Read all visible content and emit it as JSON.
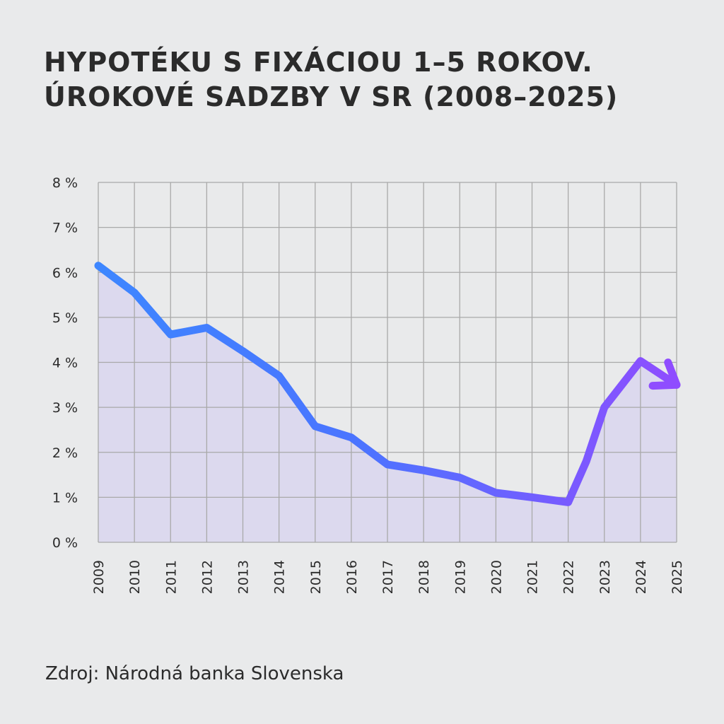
{
  "title_line1": "HYPOTÉKU S FIXÁCIOU 1–5 ROKOV.",
  "title_line2": "ÚROKOVÉ SADZBY V SR (2008–2025)",
  "source": "Zdroj: Národná banka Slovenska",
  "colors": {
    "background": "#e9eaeb",
    "line_start": "#3d86ff",
    "line_end": "#8f4dff",
    "area_fill": "#dcd9ee",
    "grid": "#a9a9a9",
    "text": "#2b2b2b"
  },
  "chart_data": {
    "type": "line",
    "title": "HYPOTÉKU S FIXÁCIOU 1–5 ROKOV. ÚROKOVÉ SADZBY V SR (2008–2025)",
    "xlabel": "",
    "ylabel": "",
    "grid": true,
    "area_fill": true,
    "ylim": [
      0,
      8
    ],
    "xlim": [
      2009,
      2025
    ],
    "x_ticks": [
      "2009",
      "2010",
      "2011",
      "2012",
      "2013",
      "2014",
      "2015",
      "2016",
      "2017",
      "2018",
      "2019",
      "2020",
      "2021",
      "2022",
      "2023",
      "2024",
      "2025"
    ],
    "y_ticks": [
      "0 %",
      "1 %",
      "2 %",
      "3 %",
      "4 %",
      "5 %",
      "6 %",
      "7 %",
      "8 %"
    ],
    "series": [
      {
        "x": [
          2009,
          2010,
          2011,
          2012,
          2013,
          2014,
          2015,
          2016,
          2017,
          2018,
          2019,
          2020,
          2021,
          2022,
          2022.5,
          2023,
          2024,
          2025
        ],
        "y": [
          6.15,
          5.55,
          4.62,
          4.77,
          4.25,
          3.7,
          2.58,
          2.33,
          1.73,
          1.6,
          1.44,
          1.1,
          1.0,
          0.89,
          1.8,
          3.0,
          4.03,
          3.5
        ],
        "arrow_at_end": true
      }
    ]
  }
}
